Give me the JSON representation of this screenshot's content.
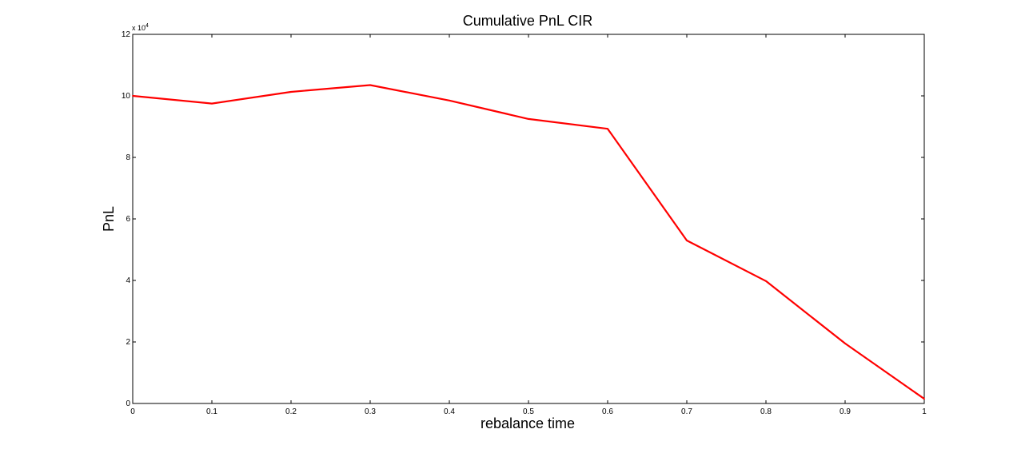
{
  "chart_data": {
    "type": "line",
    "title": "Cumulative PnL CIR",
    "xlabel": "rebalance time",
    "ylabel": "PnL",
    "y_exponent_label": "x 10",
    "y_exponent_power": "4",
    "xlim": [
      0,
      1
    ],
    "ylim": [
      0,
      120000
    ],
    "grid": false,
    "x_ticks": [
      0,
      0.1,
      0.2,
      0.3,
      0.4,
      0.5,
      0.6,
      0.7,
      0.8,
      0.9,
      1
    ],
    "x_tick_labels": [
      "0",
      "0.1",
      "0.2",
      "0.3",
      "0.4",
      "0.5",
      "0.6",
      "0.7",
      "0.8",
      "0.9",
      "1"
    ],
    "y_ticks": [
      0,
      20000,
      40000,
      60000,
      80000,
      100000,
      120000
    ],
    "y_tick_labels": [
      "0",
      "2",
      "4",
      "6",
      "8",
      "10",
      "12"
    ],
    "series": [
      {
        "color": "#ff0000",
        "x": [
          0,
          0.1,
          0.2,
          0.3,
          0.4,
          0.5,
          0.6,
          0.7,
          0.8,
          0.9,
          1
        ],
        "values": [
          100000,
          97500,
          101300,
          103500,
          98500,
          92500,
          89300,
          53000,
          39800,
          19500,
          1500
        ]
      }
    ]
  }
}
